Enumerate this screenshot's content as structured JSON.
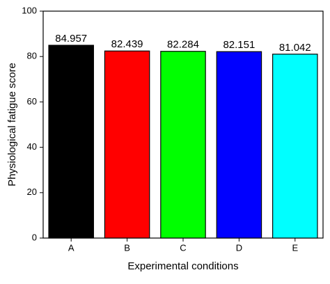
{
  "chart_data": {
    "type": "bar",
    "x_label": "Experimental conditions",
    "y_label": "Physiological fatigue score",
    "categories": [
      "A",
      "B",
      "C",
      "D",
      "E"
    ],
    "values": [
      84.957,
      82.439,
      82.284,
      82.151,
      81.042
    ],
    "colors": [
      "#000000",
      "#ff0000",
      "#00ff00",
      "#0000ff",
      "#00ffff"
    ],
    "ylim": [
      0,
      100
    ],
    "yticks": [
      0,
      20,
      40,
      60,
      80,
      100
    ]
  }
}
